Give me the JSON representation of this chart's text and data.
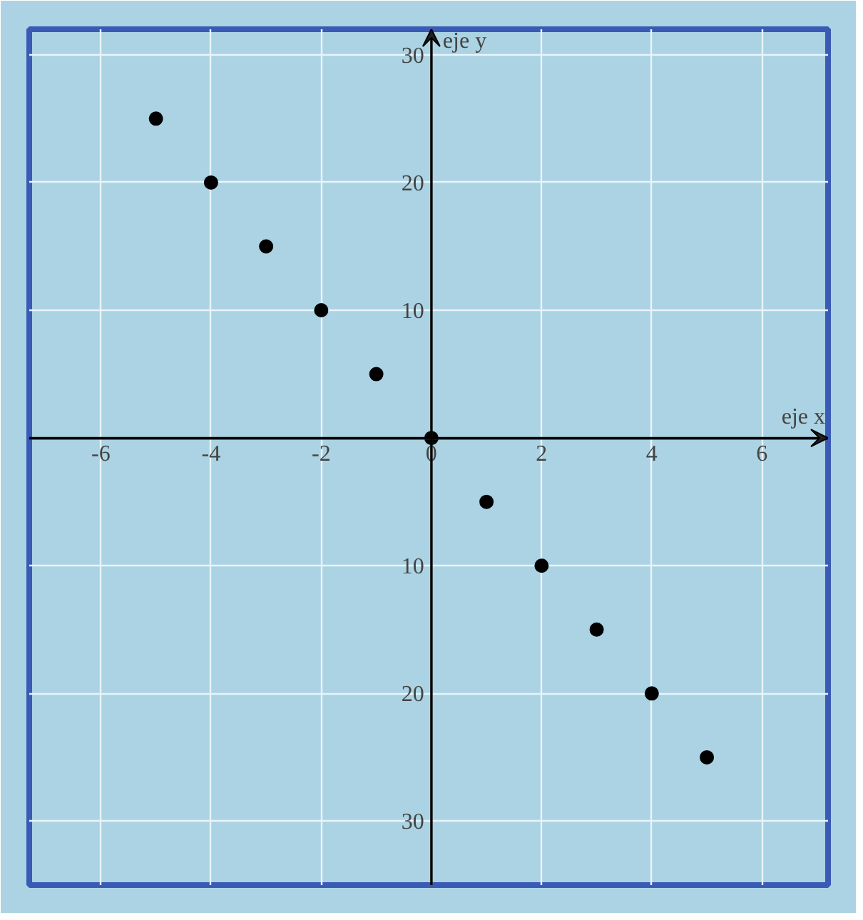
{
  "chart_data": {
    "type": "scatter",
    "xlabel": "eje x",
    "ylabel": "eje y",
    "x": [
      -5,
      -4,
      -3,
      -2,
      -1,
      0,
      1,
      2,
      3,
      4,
      5
    ],
    "values": [
      25,
      20,
      15,
      10,
      5,
      0,
      -5,
      -10,
      -15,
      -20,
      -25
    ],
    "color": "#000000",
    "marker": "circle",
    "grid": true,
    "xlim": [
      -7.3,
      7.2
    ],
    "ylim": [
      -35,
      32
    ],
    "xticks": [
      -6,
      -4,
      -2,
      {
        "value": 0,
        "label": "0"
      },
      2,
      4,
      6
    ],
    "yticks": [
      30,
      20,
      10,
      {
        "value": -10,
        "label": "10"
      },
      {
        "value": -20,
        "label": "20"
      },
      {
        "value": -30,
        "label": "30"
      }
    ]
  }
}
